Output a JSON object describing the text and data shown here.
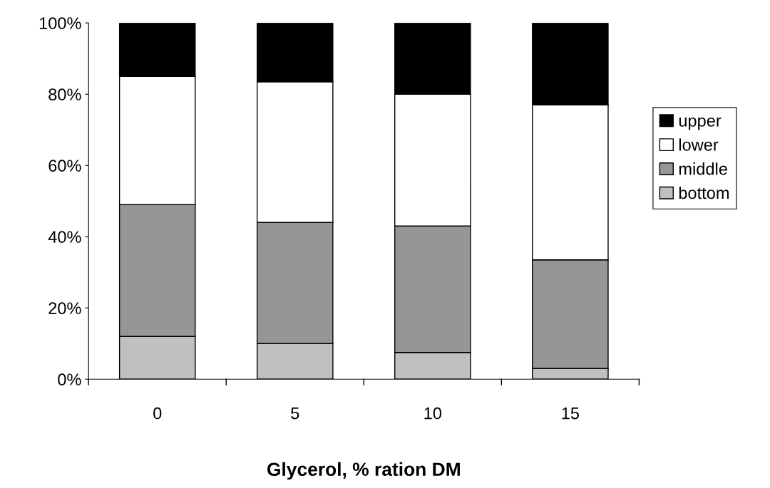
{
  "chart_data": {
    "type": "bar",
    "stacked": true,
    "xlabel": "Glycerol, % ration DM",
    "categories": [
      "0",
      "5",
      "10",
      "15"
    ],
    "series": [
      {
        "name": "bottom",
        "color": "#c0c0c0",
        "values": [
          12,
          10,
          7.5,
          3
        ]
      },
      {
        "name": "middle",
        "color": "#969696",
        "values": [
          37,
          34,
          35.5,
          30.5
        ]
      },
      {
        "name": "lower",
        "color": "#ffffff",
        "values": [
          36,
          39.5,
          37,
          43.5
        ]
      },
      {
        "name": "upper",
        "color": "#000000",
        "values": [
          15,
          16.5,
          20,
          23
        ]
      }
    ],
    "ylim": [
      0,
      100
    ],
    "yticks": [
      {
        "value": 0,
        "label": "0%"
      },
      {
        "value": 20,
        "label": "20%"
      },
      {
        "value": 40,
        "label": "40%"
      },
      {
        "value": 60,
        "label": "60%"
      },
      {
        "value": 80,
        "label": "80%"
      },
      {
        "value": 100,
        "label": "100%"
      }
    ],
    "grid": false,
    "legend": "right"
  }
}
